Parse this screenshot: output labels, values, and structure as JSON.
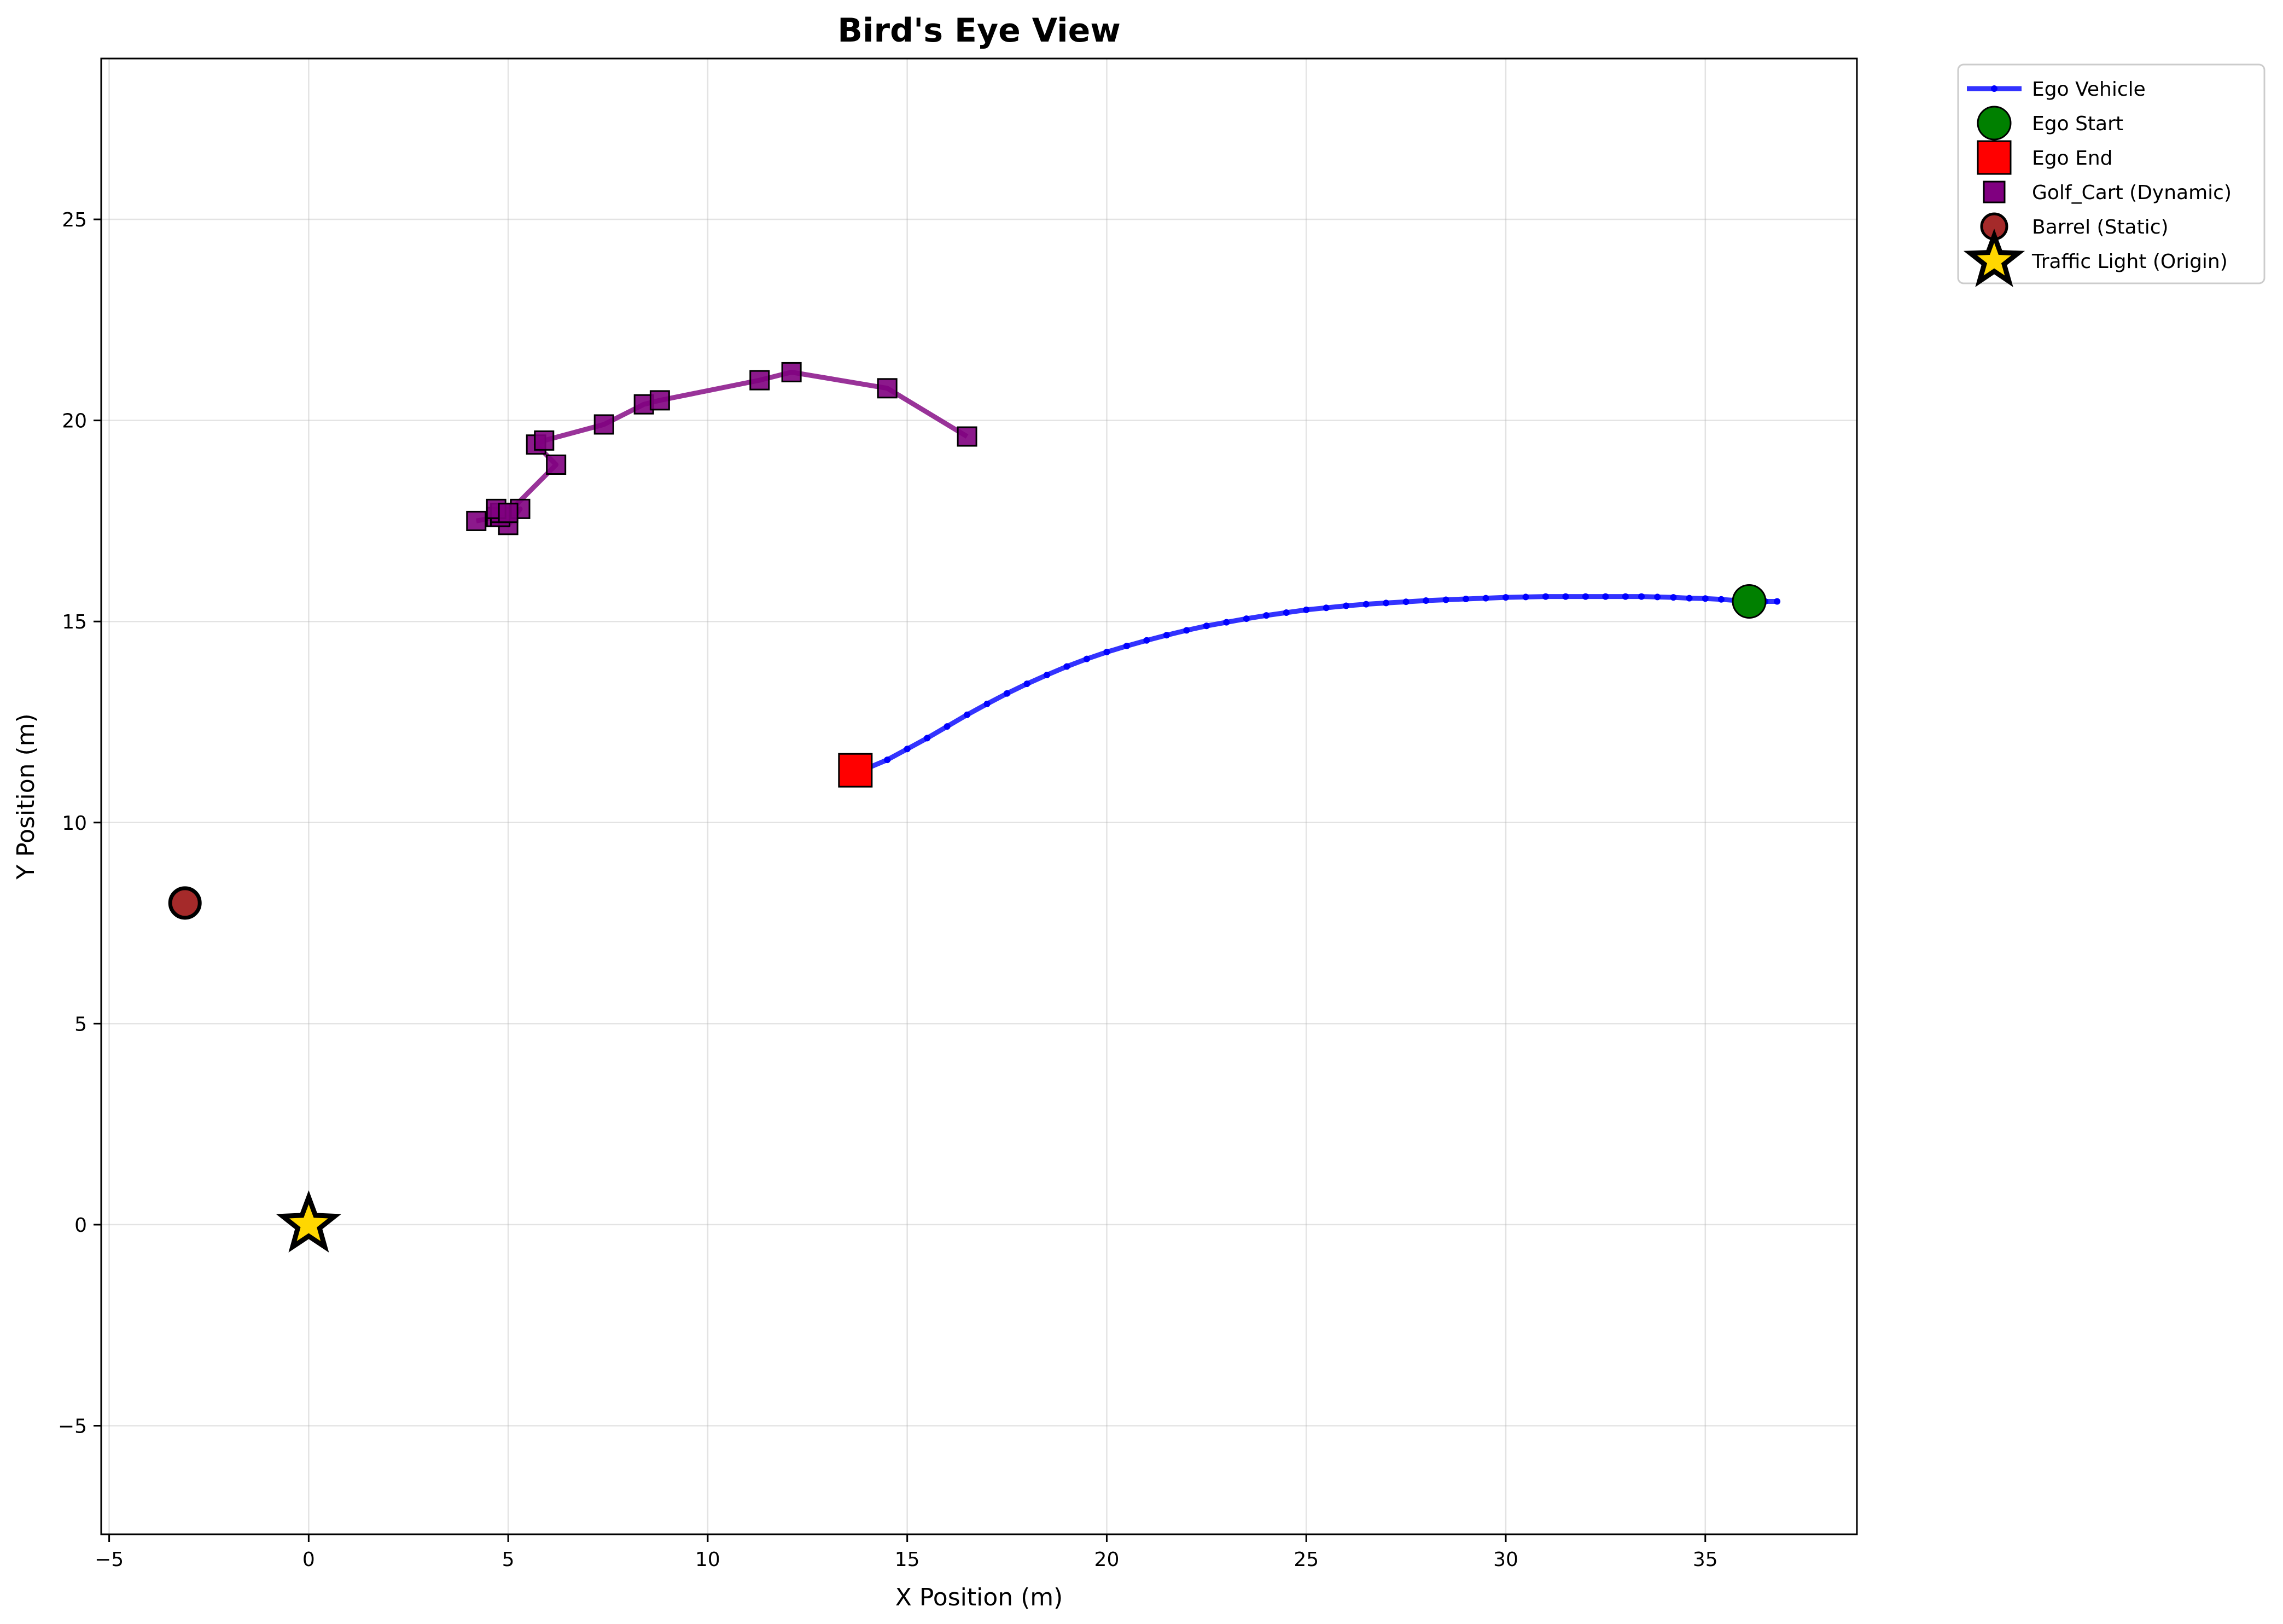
{
  "chart_data": {
    "type": "scatter",
    "title": "Bird's Eye View",
    "xlabel": "X Position (m)",
    "ylabel": "Y Position (m)",
    "xlim": [
      -5.2,
      38.8
    ],
    "ylim": [
      -7.7,
      29.0
    ],
    "xticks": [
      -5,
      0,
      5,
      10,
      15,
      20,
      25,
      30,
      35
    ],
    "yticks": [
      -5,
      0,
      5,
      10,
      15,
      20,
      25
    ],
    "grid": true,
    "legend_position": "outside-top-right",
    "colors": {
      "ego": "#0000ff",
      "ego_start": "#008000",
      "ego_end": "#ff0000",
      "golf_cart": "#800080",
      "barrel": "#a52a2a",
      "traffic_light": "#ffd700"
    },
    "series": [
      {
        "name": "Ego Vehicle",
        "kind": "line-with-points",
        "x": [
          36.8,
          36.5,
          36.2,
          35.8,
          35.4,
          35.0,
          34.6,
          34.2,
          33.8,
          33.4,
          33.0,
          32.5,
          32.0,
          31.5,
          31.0,
          30.5,
          30.0,
          29.5,
          29.0,
          28.5,
          28.0,
          27.5,
          27.0,
          26.5,
          26.0,
          25.5,
          25.0,
          24.5,
          24.0,
          23.5,
          23.0,
          22.5,
          22.0,
          21.5,
          21.0,
          20.5,
          20.0,
          19.5,
          19.0,
          18.5,
          18.0,
          17.5,
          17.0,
          16.5,
          16.0,
          15.5,
          15.0,
          14.5,
          14.0,
          13.6
        ],
        "y": [
          15.5,
          15.5,
          15.5,
          15.52,
          15.55,
          15.57,
          15.58,
          15.6,
          15.61,
          15.62,
          15.62,
          15.62,
          15.62,
          15.62,
          15.62,
          15.61,
          15.6,
          15.58,
          15.56,
          15.54,
          15.52,
          15.49,
          15.46,
          15.43,
          15.39,
          15.34,
          15.29,
          15.22,
          15.15,
          15.07,
          14.98,
          14.89,
          14.78,
          14.66,
          14.53,
          14.39,
          14.24,
          14.07,
          13.88,
          13.67,
          13.45,
          13.21,
          12.95,
          12.68,
          12.39,
          12.1,
          11.83,
          11.56,
          11.35,
          11.3
        ]
      },
      {
        "name": "Ego Start",
        "kind": "marker-circle",
        "x": [
          36.1
        ],
        "y": [
          15.5
        ]
      },
      {
        "name": "Ego End",
        "kind": "marker-square",
        "x": [
          13.7
        ],
        "y": [
          11.3
        ]
      },
      {
        "name": "Golf_Cart (Dynamic)",
        "kind": "line-with-squares",
        "x": [
          4.2,
          4.7,
          5.0,
          5.3,
          4.8,
          4.8,
          4.7,
          5.0,
          6.2,
          5.7,
          5.9,
          7.4,
          8.4,
          8.8,
          11.3,
          12.1,
          14.5,
          16.5
        ],
        "y": [
          17.5,
          17.6,
          17.4,
          17.8,
          17.6,
          17.7,
          17.8,
          17.7,
          18.9,
          19.4,
          19.5,
          19.9,
          20.4,
          20.5,
          21.0,
          21.2,
          20.8,
          19.6
        ]
      },
      {
        "name": "Barrel (Static)",
        "kind": "marker-circle",
        "x": [
          -3.1
        ],
        "y": [
          8.0
        ]
      },
      {
        "name": "Traffic Light (Origin)",
        "kind": "marker-star",
        "x": [
          0.0
        ],
        "y": [
          0.0
        ]
      }
    ]
  }
}
